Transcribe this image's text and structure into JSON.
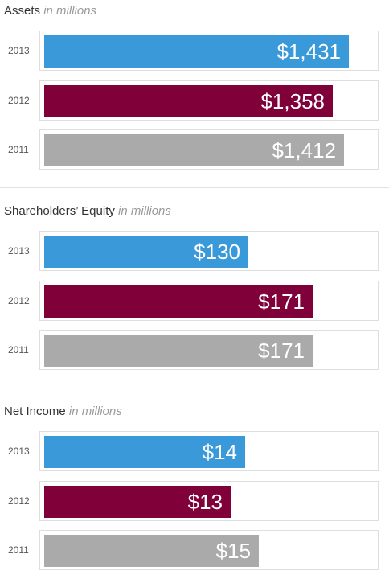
{
  "colors": {
    "2013": "#3a9ad9",
    "2012": "#80003a",
    "2011": "#aaaaaa"
  },
  "chart_data": [
    {
      "type": "bar",
      "title": "Assets",
      "subtitle": "in millions",
      "orientation": "horizontal",
      "categories": [
        "2013",
        "2012",
        "2011"
      ],
      "values": [
        1431,
        1358,
        1412
      ],
      "labels": [
        "$1,431",
        "$1,358",
        "$1,412"
      ],
      "unit": "$ millions",
      "xlim": [
        0,
        1550
      ]
    },
    {
      "type": "bar",
      "title": "Shareholders’ Equity",
      "subtitle": "in millions",
      "orientation": "horizontal",
      "categories": [
        "2013",
        "2012",
        "2011"
      ],
      "values": [
        130,
        171,
        171
      ],
      "labels": [
        "$130",
        "$171",
        "$171"
      ],
      "unit": "$ millions",
      "xlim": [
        0,
        210
      ]
    },
    {
      "type": "bar",
      "title": "Net Income",
      "subtitle": "in millions",
      "orientation": "horizontal",
      "categories": [
        "2013",
        "2012",
        "2011"
      ],
      "values": [
        14,
        13,
        15
      ],
      "labels": [
        "$14",
        "$13",
        "$15"
      ],
      "unit": "$ millions",
      "xlim": [
        0,
        23
      ]
    }
  ]
}
